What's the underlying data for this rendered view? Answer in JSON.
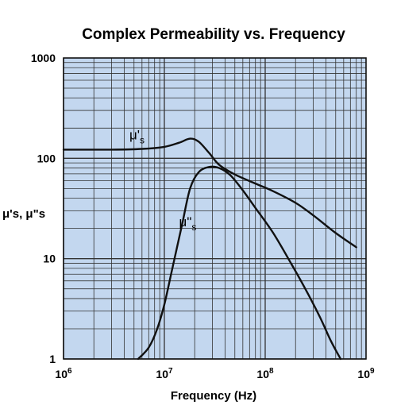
{
  "chart_data": {
    "type": "line",
    "title": "Complex Permeability vs. Frequency",
    "xlabel": "Frequency (Hz)",
    "ylabel": "μ's, μ\"s",
    "x_scale": "log",
    "y_scale": "log",
    "xlim": [
      1000000,
      1000000000
    ],
    "ylim": [
      1,
      1000
    ],
    "grid": true,
    "x_ticks": [
      {
        "value": 1000000,
        "base": "10",
        "exp": "6"
      },
      {
        "value": 10000000,
        "base": "10",
        "exp": "7"
      },
      {
        "value": 100000000,
        "base": "10",
        "exp": "8"
      },
      {
        "value": 1000000000,
        "base": "10",
        "exp": "9"
      }
    ],
    "y_ticks": [
      {
        "value": 1,
        "label": "1"
      },
      {
        "value": 10,
        "label": "10"
      },
      {
        "value": 100,
        "label": "100"
      },
      {
        "value": 1000,
        "label": "1000"
      }
    ],
    "series": [
      {
        "name": "μ's",
        "label_main": "μ'",
        "label_sub": "s",
        "label_at": [
          4500000,
          155
        ],
        "x": [
          1000000,
          3000000,
          6000000,
          10000000,
          14000000,
          18000000,
          22000000,
          28000000,
          35000000,
          50000000,
          80000000,
          120000000,
          200000000,
          300000000,
          500000000,
          800000000
        ],
        "values": [
          122,
          122,
          124,
          130,
          143,
          157,
          146,
          112,
          86,
          69,
          56,
          47,
          36,
          27,
          18,
          13
        ]
      },
      {
        "name": "μ\"s",
        "label_main": "μ\"",
        "label_sub": "s",
        "label_at": [
          14000000,
          21
        ],
        "x": [
          5500000,
          7000000,
          8500000,
          10000000,
          12000000,
          15000000,
          18000000,
          22000000,
          28000000,
          35000000,
          45000000,
          60000000,
          80000000,
          120000000,
          180000000,
          250000000,
          350000000,
          450000000,
          560000000
        ],
        "values": [
          1,
          1.3,
          2,
          3.5,
          8,
          22,
          50,
          73,
          82,
          80,
          68,
          48,
          32,
          18,
          9,
          5,
          2.6,
          1.5,
          1
        ]
      }
    ],
    "colors": {
      "plot_bg": "#c3d7ef",
      "grid": "#333333",
      "line": "#111111",
      "text": "#111111"
    }
  }
}
